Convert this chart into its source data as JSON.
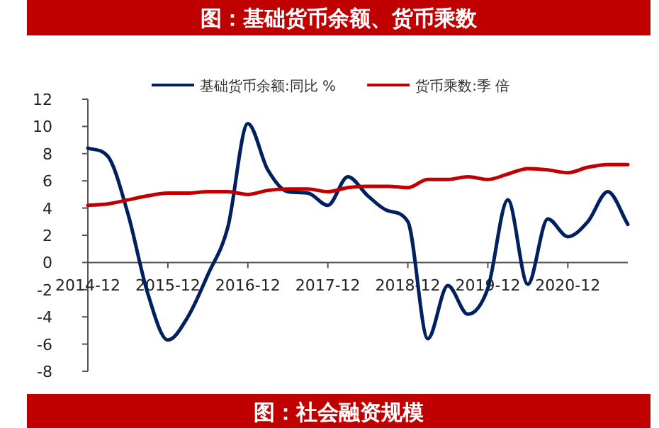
{
  "chart_data": {
    "type": "line",
    "title": "图：基础货币余额、货币乘数",
    "annotations": [
      "图：社会融资规模"
    ],
    "x": [
      "2014-12",
      "2015-03",
      "2015-06",
      "2015-09",
      "2015-12",
      "2016-03",
      "2016-06",
      "2016-09",
      "2016-12",
      "2017-03",
      "2017-06",
      "2017-09",
      "2017-12",
      "2018-03",
      "2018-06",
      "2018-09",
      "2018-12",
      "2019-03",
      "2019-06",
      "2019-09",
      "2019-12",
      "2020-03",
      "2020-06",
      "2020-09",
      "2020-12",
      "2021-03",
      "2021-06",
      "2021-09"
    ],
    "series": [
      {
        "name": "基础货币余额:同比 %",
        "color": "#002060",
        "values": [
          8.4,
          7.8,
          3.6,
          -2.3,
          -5.7,
          -4.0,
          -0.9,
          2.6,
          10.2,
          6.8,
          5.2,
          5.1,
          4.2,
          6.3,
          4.9,
          3.8,
          3.0,
          -5.6,
          -1.7,
          -3.8,
          -1.9,
          4.6,
          -1.6,
          3.2,
          1.9,
          3.0,
          5.2,
          2.8
        ]
      },
      {
        "name": "货币乘数:季 倍",
        "color": "#c00000",
        "values": [
          4.2,
          4.3,
          4.6,
          4.9,
          5.1,
          5.1,
          5.2,
          5.2,
          5.0,
          5.3,
          5.4,
          5.4,
          5.2,
          5.5,
          5.6,
          5.6,
          5.5,
          6.1,
          6.1,
          6.3,
          6.1,
          6.5,
          6.9,
          6.8,
          6.6,
          7.0,
          7.2,
          7.2
        ]
      }
    ],
    "xlim": [
      "2014-12",
      "2021-09"
    ],
    "xticks": [
      "2014-12",
      "2015-12",
      "2016-12",
      "2017-12",
      "2018-12",
      "2019-12",
      "2020-12"
    ],
    "ylim": [
      -8,
      12
    ],
    "yticks": [
      -8,
      -6,
      -4,
      -2,
      0,
      2,
      4,
      6,
      8,
      10,
      12
    ],
    "legend": "top",
    "grid": false,
    "marker": "none",
    "line_style": "solid"
  }
}
